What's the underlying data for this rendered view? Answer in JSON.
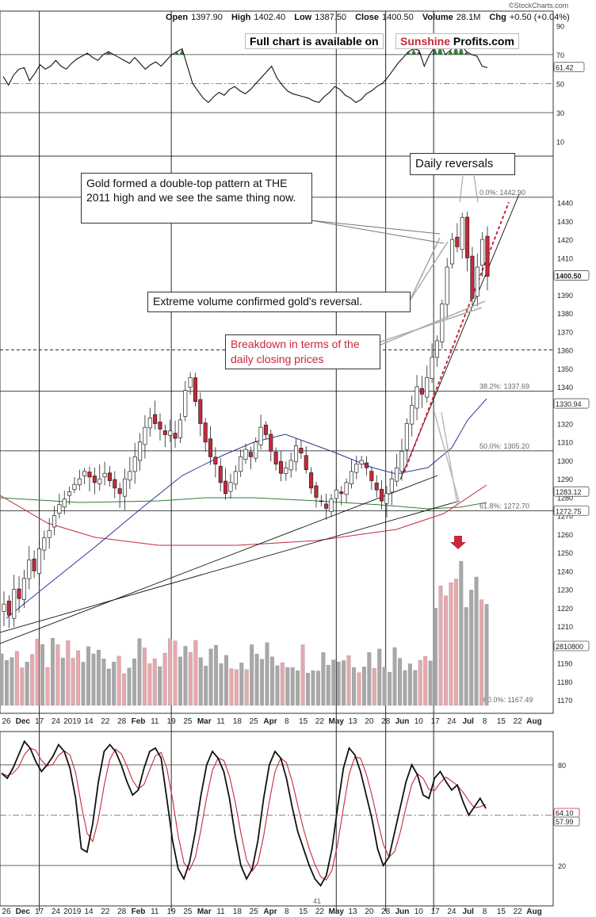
{
  "brand": "©StockCharts.com",
  "ohlc": {
    "open_label": "Open",
    "open": "1397.90",
    "high_label": "High",
    "high": "1402.40",
    "low_label": "Low",
    "low": "1387.50",
    "close_label": "Close",
    "close": "1400.50",
    "volume_label": "Volume",
    "volume": "28.1M",
    "chg_label": "Chg",
    "chg": "+0.50 (+0.04%)"
  },
  "promo": {
    "prefix": "Full chart is available on",
    "sun": "Sunshine",
    "profits": "Profits.com"
  },
  "annotations": {
    "double_top": "Gold formed a double-top pattern at THE 2011 high and we see the same thing now.",
    "daily_reversals": "Daily reversals",
    "volume": "Extreme volume confirmed gold's reversal.",
    "breakdown": "Breakdown in terms of the daily closing prices"
  },
  "colors": {
    "up": "#ffffff",
    "down": "#c8283c",
    "ma50": "#2b3a9c",
    "ma200": "#c8283c",
    "ma_green": "#2e7d32",
    "rsi_fill": "#2e6b2e",
    "vol_gray": "#a8a8a8",
    "vol_pink": "#e8a8ae"
  },
  "chart_data": [
    {
      "type": "line",
      "name": "RSI",
      "ylim": [
        0,
        100
      ],
      "yticks": [
        10,
        30,
        50,
        70,
        90
      ],
      "current_label": "61.42",
      "values": [
        55,
        49,
        56,
        60,
        61,
        52,
        57,
        63,
        60,
        62,
        66,
        62,
        60,
        64,
        67,
        69,
        71,
        68,
        66,
        70,
        72,
        70,
        68,
        66,
        64,
        68,
        64,
        60,
        63,
        65,
        62,
        66,
        70,
        72,
        74,
        62,
        50,
        45,
        40,
        37,
        41,
        44,
        42,
        46,
        48,
        45,
        43,
        46,
        50,
        54,
        58,
        62,
        54,
        49,
        45,
        43,
        42,
        41,
        40,
        38,
        37,
        41,
        44,
        48,
        46,
        42,
        40,
        37,
        39,
        43,
        45,
        48,
        50,
        54,
        59,
        64,
        68,
        72,
        74,
        73,
        62,
        70,
        75,
        78,
        70,
        73,
        78,
        77,
        72,
        70,
        69,
        62,
        61
      ]
    },
    {
      "type": "candlestick",
      "name": "Gold",
      "ylim": [
        1160,
        1455
      ],
      "yticks": [
        1170,
        1180,
        1190,
        1200,
        1210,
        1220,
        1230,
        1240,
        1250,
        1260,
        1270,
        1280,
        1290,
        1300,
        1310,
        1320,
        1330,
        1340,
        1350,
        1360,
        1370,
        1380,
        1390,
        1400,
        1410,
        1420,
        1430,
        1440
      ],
      "x_ticks": [
        "26",
        "Dec",
        "17",
        "24",
        "2019",
        "14",
        "22",
        "28",
        "Feb",
        "11",
        "19",
        "25",
        "Mar",
        "11",
        "18",
        "25",
        "Apr",
        "8",
        "15",
        "22",
        "May",
        "13",
        "20",
        "28",
        "Jun",
        "10",
        "17",
        "24",
        "Jul",
        "8",
        "15",
        "22",
        "Aug"
      ],
      "fib_levels": [
        {
          "label": "0.0%: 1442.90",
          "value": 1442.9
        },
        {
          "label": "38.2%: 1337.69",
          "value": 1337.69
        },
        {
          "label": "50.0%: 1305.20",
          "value": 1305.2
        },
        {
          "label": "61.8%: 1272.70",
          "value": 1272.7
        },
        {
          "label": "100.0%: 1167.49",
          "value": 1167.49
        }
      ],
      "price_tags": [
        {
          "label": "1400.50",
          "value": 1400.5
        },
        {
          "label": "1330.94",
          "value": 1330.94
        },
        {
          "label": "1283.12",
          "value": 1283.12
        },
        {
          "label": "1272.75",
          "value": 1272.75
        },
        {
          "label": "2810800",
          "value": 1206
        }
      ],
      "closes": [
        1222,
        1216,
        1230,
        1225,
        1236,
        1246,
        1240,
        1252,
        1258,
        1262,
        1270,
        1276,
        1279,
        1283,
        1287,
        1290,
        1294,
        1291,
        1288,
        1290,
        1293,
        1289,
        1285,
        1282,
        1290,
        1294,
        1302,
        1310,
        1318,
        1323,
        1320,
        1317,
        1314,
        1316,
        1312,
        1322,
        1338,
        1345,
        1332,
        1320,
        1310,
        1302,
        1298,
        1288,
        1282,
        1288,
        1294,
        1302,
        1306,
        1302,
        1310,
        1318,
        1314,
        1305,
        1298,
        1293,
        1296,
        1300,
        1308,
        1304,
        1295,
        1285,
        1280,
        1278,
        1274,
        1279,
        1284,
        1282,
        1288,
        1294,
        1298,
        1300,
        1296,
        1289,
        1284,
        1278,
        1282,
        1290,
        1296,
        1305,
        1320,
        1330,
        1340,
        1336,
        1345,
        1356,
        1365,
        1385,
        1405,
        1420,
        1416,
        1432,
        1410,
        1388,
        1405,
        1420,
        1400
      ]
    },
    {
      "type": "line",
      "name": "Stochastic",
      "ylim": [
        0,
        100
      ],
      "yticks": [
        20,
        50,
        80
      ],
      "current_labels": [
        "64.10",
        "57.99"
      ],
      "low_label": "41",
      "x_ticks": [
        "26",
        "Dec",
        "17",
        "24",
        "2019",
        "14",
        "22",
        "28",
        "Feb",
        "11",
        "19",
        "25",
        "Mar",
        "11",
        "18",
        "25",
        "Apr",
        "8",
        "15",
        "22",
        "May",
        "13",
        "20",
        "28",
        "Jun",
        "10",
        "17",
        "24",
        "Jul",
        "8",
        "15",
        "22",
        "Aug"
      ],
      "values": [
        75,
        72,
        78,
        86,
        94,
        90,
        82,
        76,
        80,
        85,
        92,
        88,
        78,
        60,
        30,
        28,
        45,
        70,
        88,
        92,
        88,
        80,
        70,
        62,
        65,
        78,
        88,
        90,
        84,
        60,
        35,
        18,
        12,
        22,
        40,
        62,
        80,
        88,
        84,
        76,
        60,
        38,
        20,
        12,
        18,
        35,
        60,
        80,
        88,
        84,
        72,
        55,
        40,
        30,
        20,
        12,
        8,
        14,
        30,
        55,
        78,
        90,
        86,
        76,
        62,
        48,
        30,
        20,
        25,
        40,
        55,
        70,
        80,
        74,
        62,
        60,
        72,
        76,
        70,
        65,
        68,
        58,
        50,
        55,
        60,
        54
      ]
    }
  ]
}
